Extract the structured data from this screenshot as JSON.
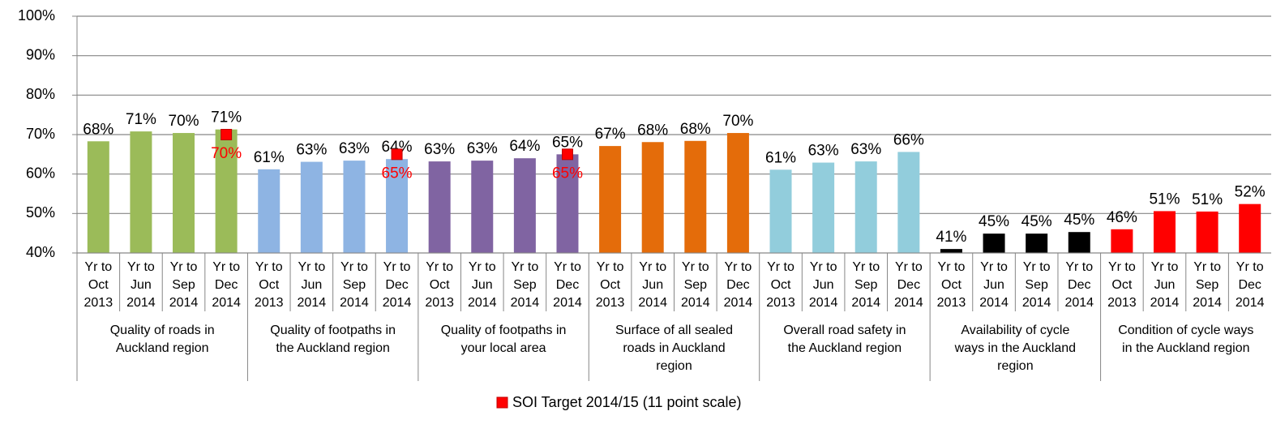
{
  "chart_data": {
    "type": "bar",
    "ylim": [
      40,
      100
    ],
    "yticks": [
      {
        "value": 40,
        "label": "40%"
      },
      {
        "value": 50,
        "label": "50%"
      },
      {
        "value": 60,
        "label": "60%"
      },
      {
        "value": 70,
        "label": "70%"
      },
      {
        "value": 80,
        "label": "80%"
      },
      {
        "value": 90,
        "label": "90%"
      },
      {
        "value": 100,
        "label": "100%"
      }
    ],
    "grid": true,
    "groups": [
      {
        "label": [
          "Quality of roads in",
          "Auckland region"
        ],
        "color": "#9bbb59",
        "periods": [
          [
            "Yr to",
            "Oct",
            "2013"
          ],
          [
            "Yr to",
            "Jun",
            "2014"
          ],
          [
            "Yr to",
            "Sep",
            "2014"
          ],
          [
            "Yr to",
            "Dec",
            "2014"
          ]
        ],
        "values": [
          68.3,
          70.8,
          70.4,
          71.3
        ],
        "value_labels": [
          "68%",
          "71%",
          "70%",
          "71%"
        ]
      },
      {
        "label": [
          "Quality of footpaths in",
          "the Auckland region"
        ],
        "color": "#8eb4e3",
        "periods": [
          [
            "Yr to",
            "Oct",
            "2013"
          ],
          [
            "Yr to",
            "Jun",
            "2014"
          ],
          [
            "Yr to",
            "Sep",
            "2014"
          ],
          [
            "Yr to",
            "Dec",
            "2014"
          ]
        ],
        "values": [
          61.2,
          63.1,
          63.4,
          63.8
        ],
        "value_labels": [
          "61%",
          "63%",
          "63%",
          "64%"
        ]
      },
      {
        "label": [
          "Quality of footpaths in",
          "your local area"
        ],
        "color": "#8064a2",
        "periods": [
          [
            "Yr to",
            "Oct",
            "2013"
          ],
          [
            "Yr to",
            "Jun",
            "2014"
          ],
          [
            "Yr to",
            "Sep",
            "2014"
          ],
          [
            "Yr to",
            "Dec",
            "2014"
          ]
        ],
        "values": [
          63.2,
          63.4,
          64.0,
          65.0
        ],
        "value_labels": [
          "63%",
          "63%",
          "64%",
          "65%"
        ]
      },
      {
        "label": [
          "Surface of all sealed",
          "roads in Auckland",
          "region"
        ],
        "color": "#e46c0a",
        "periods": [
          [
            "Yr to",
            "Oct",
            "2013"
          ],
          [
            "Yr to",
            "Jun",
            "2014"
          ],
          [
            "Yr to",
            "Sep",
            "2014"
          ],
          [
            "Yr to",
            "Dec",
            "2014"
          ]
        ],
        "values": [
          67.1,
          68.1,
          68.4,
          70.4
        ],
        "value_labels": [
          "67%",
          "68%",
          "68%",
          "70%"
        ]
      },
      {
        "label": [
          "Overall road safety in",
          "the Auckland region"
        ],
        "color": "#92cddc",
        "periods": [
          [
            "Yr to",
            "Oct",
            "2013"
          ],
          [
            "Yr to",
            "Jun",
            "2014"
          ],
          [
            "Yr to",
            "Sep",
            "2014"
          ],
          [
            "Yr to",
            "Dec",
            "2014"
          ]
        ],
        "values": [
          61.1,
          62.9,
          63.2,
          65.6
        ],
        "value_labels": [
          "61%",
          "63%",
          "63%",
          "66%"
        ]
      },
      {
        "label": [
          "Availability of cycle",
          "ways in the Auckland",
          "region"
        ],
        "color": "#000000",
        "periods": [
          [
            "Yr to",
            "Oct",
            "2013"
          ],
          [
            "Yr to",
            "Jun",
            "2014"
          ],
          [
            "Yr to",
            "Sep",
            "2014"
          ],
          [
            "Yr to",
            "Dec",
            "2014"
          ]
        ],
        "values": [
          41.0,
          44.9,
          44.9,
          45.3
        ],
        "value_labels": [
          "41%",
          "45%",
          "45%",
          "45%"
        ]
      },
      {
        "label": [
          "Condition of cycle ways",
          "in the Auckland region"
        ],
        "color": "#ff0000",
        "periods": [
          [
            "Yr to",
            "Oct",
            "2013"
          ],
          [
            "Yr to",
            "Jun",
            "2014"
          ],
          [
            "Yr to",
            "Sep",
            "2014"
          ],
          [
            "Yr to",
            "Dec",
            "2014"
          ]
        ],
        "values": [
          46.0,
          50.6,
          50.5,
          52.4
        ],
        "value_labels": [
          "46%",
          "51%",
          "51%",
          "52%"
        ]
      }
    ],
    "target": {
      "name": "SOI Target 2014/15 (11 point scale)",
      "color": "#ff0000",
      "values": [
        [
          null,
          null,
          null,
          70
        ],
        [
          null,
          null,
          null,
          65
        ],
        [
          null,
          null,
          null,
          65
        ],
        [
          null,
          null,
          null,
          null
        ],
        [
          null,
          null,
          null,
          null
        ],
        [
          null,
          null,
          null,
          null
        ],
        [
          null,
          null,
          null,
          null
        ]
      ],
      "value_labels": [
        [
          null,
          null,
          null,
          "70%"
        ],
        [
          null,
          null,
          null,
          "65%"
        ],
        [
          null,
          null,
          null,
          "65%"
        ],
        [
          null,
          null,
          null,
          null
        ],
        [
          null,
          null,
          null,
          null
        ],
        [
          null,
          null,
          null,
          null
        ],
        [
          null,
          null,
          null,
          null
        ]
      ]
    }
  }
}
